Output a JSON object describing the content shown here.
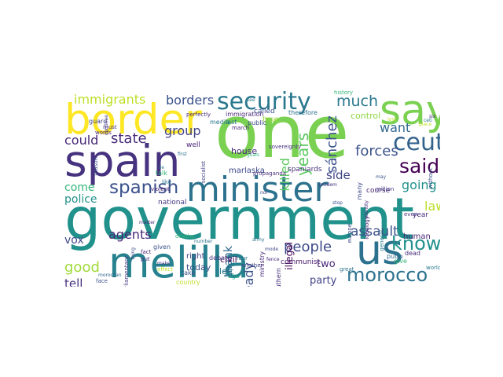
{
  "words": [
    {
      "text": "government",
      "color": "#21918c"
    },
    {
      "text": "one",
      "color": "#7ad151"
    },
    {
      "text": "spain",
      "color": "#46327e"
    },
    {
      "text": "melilla",
      "color": "#26828e"
    },
    {
      "text": "border",
      "color": "#fde725"
    },
    {
      "text": "minister",
      "color": "#2c728e"
    },
    {
      "text": "say",
      "color": "#7ad151"
    },
    {
      "text": "us",
      "color": "#2c728e"
    },
    {
      "text": "security",
      "color": "#2a788e"
    },
    {
      "text": "ceuta",
      "color": "#33638d"
    },
    {
      "text": "spanish",
      "color": "#3b528b"
    },
    {
      "text": "said",
      "color": "#440154"
    },
    {
      "text": "know",
      "color": "#21918c"
    },
    {
      "text": "morocco",
      "color": "#2c728e"
    },
    {
      "text": "immigrants",
      "color": "#bddf26"
    },
    {
      "text": "borders",
      "color": "#3b528b"
    },
    {
      "text": "much",
      "color": "#2a788e"
    },
    {
      "text": "state",
      "color": "#472d7b"
    },
    {
      "text": "group",
      "color": "#414487"
    },
    {
      "text": "forces",
      "color": "#3b528b"
    },
    {
      "text": "years",
      "color": "#5ec962"
    },
    {
      "text": "sánchez",
      "color": "#3b528b"
    },
    {
      "text": "killed",
      "color": "#5ec962"
    },
    {
      "text": "agents",
      "color": "#482878"
    },
    {
      "text": "people",
      "color": "#3e4989"
    },
    {
      "text": "assault",
      "color": "#3b528b"
    },
    {
      "text": "law",
      "color": "#bddf26"
    },
    {
      "text": "want",
      "color": "#31688e"
    },
    {
      "text": "going",
      "color": "#21918c"
    },
    {
      "text": "side",
      "color": "#414487"
    },
    {
      "text": "could",
      "color": "#482878"
    },
    {
      "text": "come",
      "color": "#35b779"
    },
    {
      "text": "police",
      "color": "#21918c"
    },
    {
      "text": "vox",
      "color": "#3e4989"
    },
    {
      "text": "good",
      "color": "#a0da39"
    },
    {
      "text": "tell",
      "color": "#46327e"
    },
    {
      "text": "thank",
      "color": "#31688e"
    },
    {
      "text": "already",
      "color": "#3b528b"
    },
    {
      "text": "two",
      "color": "#482878"
    },
    {
      "text": "party",
      "color": "#414487"
    },
    {
      "text": "house",
      "color": "#482475"
    },
    {
      "text": "marlaska",
      "color": "#3e4989"
    },
    {
      "text": "civil",
      "color": "#440154"
    },
    {
      "text": "today",
      "color": "#3b528b"
    },
    {
      "text": "left",
      "color": "#2a788e"
    },
    {
      "text": "right",
      "color": "#414487"
    },
    {
      "text": "national",
      "color": "#443983"
    },
    {
      "text": "illegal",
      "color": "#440154"
    },
    {
      "text": "spaniards",
      "color": "#46327e"
    },
    {
      "text": "communist",
      "color": "#481a6c"
    },
    {
      "text": "human",
      "color": "#482475"
    },
    {
      "text": "year",
      "color": "#472c7a"
    },
    {
      "text": "course",
      "color": "#482878"
    },
    {
      "text": "control",
      "color": "#8fd744"
    },
    {
      "text": "true",
      "color": "#a0da39"
    },
    {
      "text": "called",
      "color": "#3b528b"
    },
    {
      "text": "therefore",
      "color": "#2c728e"
    },
    {
      "text": "immigration",
      "color": "#482878"
    },
    {
      "text": "last",
      "color": "#2c728e"
    },
    {
      "text": "public",
      "color": "#3e4989"
    },
    {
      "text": "march",
      "color": "#482475"
    },
    {
      "text": "history",
      "color": "#35b779"
    },
    {
      "text": "media",
      "color": "#2a788e"
    },
    {
      "text": "guard",
      "color": "#414487"
    },
    {
      "text": "must",
      "color": "#443983"
    },
    {
      "text": "words",
      "color": "#482878"
    },
    {
      "text": "well",
      "color": "#482475"
    },
    {
      "text": "debate",
      "color": "#46327e"
    },
    {
      "text": "give",
      "color": "#35b779"
    },
    {
      "text": "world",
      "color": "#2a788e"
    },
    {
      "text": "dead",
      "color": "#472d7b"
    },
    {
      "text": "million",
      "color": "#443983"
    },
    {
      "text": "putin",
      "color": "#31688e"
    },
    {
      "text": "without",
      "color": "#3b528b"
    },
    {
      "text": "general",
      "color": "#2a788e"
    },
    {
      "text": "even",
      "color": "#46327e"
    },
    {
      "text": "great",
      "color": "#2c728e"
    },
    {
      "text": "face",
      "color": "#3b528b"
    },
    {
      "text": "country",
      "color": "#bddf26"
    },
    {
      "text": "ago",
      "color": "#1fa187"
    },
    {
      "text": "another",
      "color": "#414487"
    },
    {
      "text": "ministry",
      "color": "#482878"
    },
    {
      "text": "four",
      "color": "#2c728e"
    },
    {
      "text": "southern",
      "color": "#46327e"
    },
    {
      "text": "given",
      "color": "#3b528b"
    },
    {
      "text": "parliamentary",
      "color": "#443983"
    },
    {
      "text": "fact",
      "color": "#482475"
    },
    {
      "text": "put",
      "color": "#46327e"
    },
    {
      "text": "thing",
      "color": "#3e4989"
    },
    {
      "text": "talk",
      "color": "#35b779"
    },
    {
      "text": "like",
      "color": "#2a788e"
    },
    {
      "text": "violent",
      "color": "#482878"
    },
    {
      "text": "take",
      "color": "#3b528b"
    },
    {
      "text": "moroccan",
      "color": "#31688e"
    },
    {
      "text": "number",
      "color": "#2c728e"
    },
    {
      "text": "socialist",
      "color": "#414487"
    },
    {
      "text": "sovereignty",
      "color": "#46327e"
    },
    {
      "text": "many",
      "color": "#3e4989"
    },
    {
      "text": "continue",
      "color": "#443983"
    },
    {
      "text": "perfectly",
      "color": "#472d7b"
    },
    {
      "text": "see",
      "color": "#2a788e"
    },
    {
      "text": "ideology",
      "color": "#482475"
    },
    {
      "text": "europe",
      "color": "#3e4989"
    },
    {
      "text": "make",
      "color": "#443983"
    },
    {
      "text": "effect",
      "color": "#bddf26"
    },
    {
      "text": "propaganda",
      "color": "#472d7b"
    },
    {
      "text": "deaths",
      "color": "#35b779"
    },
    {
      "text": "army",
      "color": "#2c728e"
    },
    {
      "text": "mode",
      "color": "#3e4989"
    },
    {
      "text": "modem",
      "color": "#46327e"
    },
    {
      "text": "fence",
      "color": "#482878"
    },
    {
      "text": "ceti",
      "color": "#2c728e"
    },
    {
      "text": "six",
      "color": "#482475"
    },
    {
      "text": "place",
      "color": "#bddf26"
    },
    {
      "text": "reason",
      "color": "#3b528b"
    },
    {
      "text": "goals",
      "color": "#35b779"
    },
    {
      "text": "identity",
      "color": "#46327e"
    },
    {
      "text": "may",
      "color": "#3b528b"
    },
    {
      "text": "lie",
      "color": "#2a788e"
    },
    {
      "text": "matter",
      "color": "#472d7b"
    },
    {
      "text": "lost",
      "color": "#bddf26"
    },
    {
      "text": "first",
      "color": "#2c728e"
    },
    {
      "text": "nor",
      "color": "#414487"
    },
    {
      "text": "stop",
      "color": "#3e4989"
    }
  ]
}
